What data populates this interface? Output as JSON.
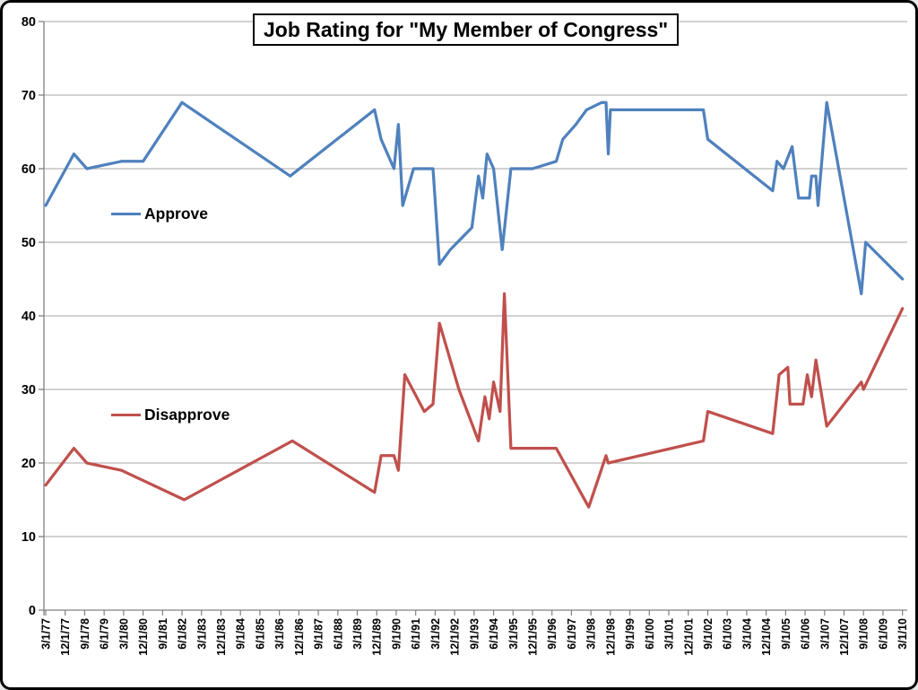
{
  "window": {
    "background_color": "#ffffff",
    "border_color": "#000000"
  },
  "chart_data": {
    "type": "line",
    "title": "Job Rating for \"My Member of Congress\"",
    "grid": true,
    "legend_position": "inside-plot",
    "legend": [
      {
        "name": "Approve",
        "color": "#4F81BD"
      },
      {
        "name": "Disapprove",
        "color": "#C0504D"
      }
    ],
    "colors": {
      "gridline": "#A6A6A6",
      "axis": "#808080",
      "label": "#000000"
    },
    "y_axis": {
      "min": 0,
      "max": 80,
      "step": 10,
      "ticks": [
        0,
        10,
        20,
        30,
        40,
        50,
        60,
        70,
        80
      ]
    },
    "x_axis": {
      "unit": "months since 3/1/77",
      "months_per_label_step": 9,
      "label_rotation_deg": -90,
      "labels": [
        "3/1/77",
        "12/1/77",
        "9/1/78",
        "6/1/79",
        "3/1/80",
        "12/1/80",
        "9/1/81",
        "6/1/82",
        "3/1/83",
        "12/1/83",
        "9/1/84",
        "6/1/85",
        "3/1/86",
        "12/1/86",
        "9/1/87",
        "6/1/88",
        "3/1/89",
        "12/1/89",
        "9/1/90",
        "6/1/91",
        "3/1/92",
        "12/1/92",
        "9/1/93",
        "6/1/94",
        "3/1/95",
        "12/1/95",
        "9/1/96",
        "6/1/97",
        "3/1/98",
        "12/1/98",
        "9/1/99",
        "6/1/00",
        "3/1/01",
        "12/1/01",
        "9/1/02",
        "6/1/03",
        "3/1/04",
        "12/1/04",
        "9/1/05",
        "6/1/06",
        "3/1/07",
        "12/1/07",
        "9/1/08",
        "6/1/09",
        "3/1/10"
      ]
    },
    "series": [
      {
        "name": "Approve",
        "color": "#4F81BD",
        "points": [
          [
            0,
            55
          ],
          [
            13,
            62
          ],
          [
            19,
            60
          ],
          [
            35,
            61
          ],
          [
            45,
            61
          ],
          [
            63,
            69
          ],
          [
            113,
            59
          ],
          [
            152,
            68
          ],
          [
            155,
            64
          ],
          [
            161,
            60
          ],
          [
            163,
            66
          ],
          [
            165,
            55
          ],
          [
            170,
            60
          ],
          [
            179,
            60
          ],
          [
            182,
            47
          ],
          [
            187,
            49
          ],
          [
            197,
            52
          ],
          [
            200,
            59
          ],
          [
            202,
            56
          ],
          [
            204,
            62
          ],
          [
            207,
            60
          ],
          [
            211,
            49
          ],
          [
            215,
            60
          ],
          [
            225,
            60
          ],
          [
            236,
            61
          ],
          [
            239,
            64
          ],
          [
            245,
            66
          ],
          [
            250,
            68
          ],
          [
            257,
            69
          ],
          [
            259,
            69
          ],
          [
            260,
            62
          ],
          [
            261,
            68
          ],
          [
            304,
            68
          ],
          [
            306,
            64
          ],
          [
            336,
            57
          ],
          [
            338,
            61
          ],
          [
            341,
            60
          ],
          [
            345,
            63
          ],
          [
            348,
            56
          ],
          [
            353,
            56
          ],
          [
            354,
            59
          ],
          [
            356,
            59
          ],
          [
            357,
            55
          ],
          [
            361,
            69
          ],
          [
            377,
            43
          ],
          [
            379,
            50
          ],
          [
            396,
            45
          ]
        ]
      },
      {
        "name": "Disapprove",
        "color": "#C0504D",
        "points": [
          [
            0,
            17
          ],
          [
            13,
            22
          ],
          [
            19,
            20
          ],
          [
            35,
            19
          ],
          [
            64,
            15
          ],
          [
            114,
            23
          ],
          [
            152,
            16
          ],
          [
            155,
            21
          ],
          [
            161,
            21
          ],
          [
            163,
            19
          ],
          [
            166,
            32
          ],
          [
            175,
            27
          ],
          [
            179,
            28
          ],
          [
            182,
            39
          ],
          [
            191,
            30
          ],
          [
            200,
            23
          ],
          [
            203,
            29
          ],
          [
            205,
            26
          ],
          [
            207,
            31
          ],
          [
            210,
            27
          ],
          [
            212,
            43
          ],
          [
            215,
            22
          ],
          [
            236,
            22
          ],
          [
            251,
            14
          ],
          [
            259,
            21
          ],
          [
            260,
            20
          ],
          [
            304,
            23
          ],
          [
            306,
            27
          ],
          [
            336,
            24
          ],
          [
            339,
            32
          ],
          [
            343,
            33
          ],
          [
            344,
            28
          ],
          [
            350,
            28
          ],
          [
            352,
            32
          ],
          [
            354,
            29
          ],
          [
            356,
            34
          ],
          [
            361,
            25
          ],
          [
            377,
            31
          ],
          [
            378,
            30
          ],
          [
            396,
            41
          ]
        ]
      }
    ]
  }
}
